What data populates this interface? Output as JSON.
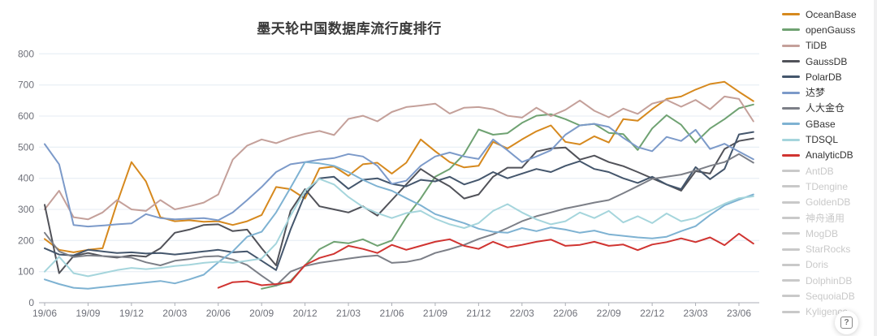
{
  "title": "墨天轮中国数据库流行度排行",
  "help_button": {
    "label": "?"
  },
  "chart_data": {
    "type": "line",
    "title": "墨天轮中国数据库流行度排行",
    "xlabel": "",
    "ylabel": "",
    "ylim": [
      0,
      800
    ],
    "y_ticks": [
      0,
      100,
      200,
      300,
      400,
      500,
      600,
      700,
      800
    ],
    "grid": true,
    "legend_position": "right",
    "x": [
      "19/06",
      "19/07",
      "19/08",
      "19/09",
      "19/10",
      "19/11",
      "19/12",
      "20/01",
      "20/02",
      "20/03",
      "20/04",
      "20/05",
      "20/06",
      "20/07",
      "20/08",
      "20/09",
      "20/10",
      "20/11",
      "20/12",
      "21/01",
      "21/02",
      "21/03",
      "21/04",
      "21/05",
      "21/06",
      "21/07",
      "21/08",
      "21/09",
      "21/10",
      "21/11",
      "21/12",
      "22/01",
      "22/02",
      "22/03",
      "22/04",
      "22/05",
      "22/06",
      "22/07",
      "22/08",
      "22/09",
      "22/10",
      "22/11",
      "22/12",
      "23/01",
      "23/02",
      "23/03",
      "23/04",
      "23/05",
      "23/06",
      "23/07"
    ],
    "x_tick_labels": [
      "19/06",
      "19/09",
      "19/12",
      "20/03",
      "20/06",
      "20/09",
      "20/12",
      "21/03",
      "21/06",
      "21/09",
      "21/12",
      "22/03",
      "22/06",
      "22/09",
      "22/12",
      "23/03",
      "23/06"
    ],
    "series": [
      {
        "name": "OceanBase",
        "color": "#D6891E",
        "enabled": true,
        "values": [
          205,
          170,
          162,
          170,
          175,
          320,
          452,
          390,
          275,
          262,
          265,
          260,
          262,
          250,
          262,
          282,
          372,
          365,
          335,
          432,
          438,
          408,
          445,
          450,
          415,
          450,
          525,
          487,
          452,
          435,
          440,
          517,
          496,
          525,
          551,
          570,
          517,
          509,
          535,
          515,
          590,
          585,
          622,
          655,
          663,
          685,
          703,
          710,
          678,
          648
        ]
      },
      {
        "name": "openGauss",
        "color": "#6FA272",
        "enabled": true,
        "values": [
          null,
          null,
          null,
          null,
          null,
          null,
          null,
          null,
          null,
          null,
          null,
          null,
          null,
          null,
          null,
          45,
          55,
          70,
          120,
          172,
          196,
          191,
          204,
          183,
          200,
          275,
          335,
          405,
          430,
          478,
          557,
          540,
          545,
          578,
          601,
          606,
          590,
          570,
          575,
          546,
          542,
          491,
          560,
          603,
          572,
          515,
          560,
          590,
          625,
          637
        ]
      },
      {
        "name": "TiDB",
        "color": "#C4A09A",
        "enabled": true,
        "values": [
          300,
          360,
          275,
          268,
          290,
          330,
          300,
          295,
          330,
          300,
          310,
          322,
          348,
          460,
          505,
          525,
          513,
          530,
          543,
          552,
          539,
          591,
          601,
          583,
          613,
          629,
          634,
          640,
          608,
          627,
          629,
          622,
          601,
          595,
          627,
          600,
          620,
          650,
          617,
          596,
          624,
          607,
          640,
          652,
          630,
          652,
          622,
          663,
          655,
          583
        ]
      },
      {
        "name": "GaussDB",
        "color": "#515259",
        "enabled": true,
        "values": [
          315,
          95,
          150,
          160,
          150,
          145,
          152,
          148,
          175,
          225,
          235,
          250,
          252,
          230,
          235,
          175,
          120,
          295,
          365,
          310,
          300,
          290,
          310,
          280,
          330,
          380,
          430,
          400,
          374,
          335,
          348,
          405,
          434,
          434,
          486,
          496,
          499,
          460,
          473,
          452,
          439,
          420,
          400,
          380,
          360,
          423,
          415,
          494,
          520,
          528
        ]
      },
      {
        "name": "PolarDB",
        "color": "#44566C",
        "enabled": true,
        "values": [
          175,
          155,
          152,
          170,
          165,
          160,
          162,
          158,
          160,
          155,
          160,
          165,
          170,
          162,
          165,
          135,
          105,
          235,
          348,
          400,
          405,
          366,
          395,
          400,
          382,
          374,
          395,
          390,
          405,
          380,
          395,
          420,
          400,
          415,
          430,
          420,
          440,
          455,
          430,
          420,
          400,
          385,
          405,
          380,
          365,
          436,
          397,
          430,
          541,
          549
        ]
      },
      {
        "name": "达梦",
        "color": "#7C9AC9",
        "enabled": true,
        "values": [
          510,
          445,
          250,
          245,
          248,
          252,
          255,
          285,
          272,
          268,
          270,
          272,
          265,
          290,
          330,
          372,
          420,
          445,
          452,
          460,
          465,
          478,
          470,
          440,
          382,
          392,
          440,
          470,
          483,
          470,
          462,
          525,
          490,
          452,
          470,
          490,
          540,
          570,
          575,
          565,
          530,
          500,
          487,
          533,
          520,
          556,
          494,
          511,
          486,
          461
        ]
      },
      {
        "name": "人大金仓",
        "color": "#7C7F87",
        "enabled": true,
        "values": [
          225,
          165,
          147,
          152,
          150,
          148,
          145,
          130,
          120,
          135,
          140,
          148,
          150,
          139,
          121,
          87,
          55,
          100,
          118,
          128,
          135,
          142,
          148,
          152,
          128,
          131,
          140,
          160,
          172,
          186,
          205,
          220,
          240,
          262,
          278,
          290,
          303,
          312,
          322,
          330,
          352,
          375,
          398,
          405,
          412,
          425,
          440,
          452,
          478,
          450
        ]
      },
      {
        "name": "GBase",
        "color": "#7EB2D2",
        "enabled": true,
        "values": [
          75,
          60,
          48,
          45,
          50,
          55,
          60,
          65,
          70,
          62,
          75,
          90,
          130,
          165,
          212,
          228,
          290,
          370,
          452,
          448,
          440,
          420,
          395,
          374,
          360,
          336,
          313,
          285,
          270,
          256,
          238,
          228,
          225,
          240,
          230,
          242,
          235,
          225,
          232,
          220,
          215,
          210,
          207,
          212,
          230,
          246,
          282,
          313,
          331,
          348
        ]
      },
      {
        "name": "TDSQL",
        "color": "#A5D5DC",
        "enabled": true,
        "values": [
          100,
          148,
          95,
          85,
          95,
          105,
          112,
          108,
          112,
          118,
          122,
          128,
          132,
          128,
          135,
          142,
          190,
          280,
          360,
          398,
          380,
          340,
          308,
          288,
          272,
          288,
          295,
          270,
          252,
          240,
          256,
          295,
          317,
          290,
          268,
          252,
          262,
          290,
          272,
          295,
          258,
          278,
          256,
          287,
          262,
          272,
          295,
          318,
          336,
          342
        ]
      },
      {
        "name": "AnalyticDB",
        "color": "#D03431",
        "enabled": true,
        "values": [
          null,
          null,
          null,
          null,
          null,
          null,
          null,
          null,
          null,
          null,
          null,
          null,
          48,
          66,
          69,
          56,
          60,
          66,
          121,
          144,
          157,
          183,
          173,
          160,
          186,
          170,
          183,
          196,
          204,
          183,
          173,
          196,
          178,
          186,
          196,
          203,
          183,
          186,
          196,
          183,
          187,
          169,
          187,
          195,
          207,
          195,
          210,
          185,
          222,
          190
        ]
      },
      {
        "name": "AntDB",
        "color": "#cccccc",
        "enabled": false,
        "values": []
      },
      {
        "name": "TDengine",
        "color": "#cccccc",
        "enabled": false,
        "values": []
      },
      {
        "name": "GoldenDB",
        "color": "#cccccc",
        "enabled": false,
        "values": []
      },
      {
        "name": "神舟通用",
        "color": "#cccccc",
        "enabled": false,
        "values": []
      },
      {
        "name": "MogDB",
        "color": "#cccccc",
        "enabled": false,
        "values": []
      },
      {
        "name": "StarRocks",
        "color": "#cccccc",
        "enabled": false,
        "values": []
      },
      {
        "name": "Doris",
        "color": "#cccccc",
        "enabled": false,
        "values": []
      },
      {
        "name": "DolphinDB",
        "color": "#cccccc",
        "enabled": false,
        "values": []
      },
      {
        "name": "SequoiaDB",
        "color": "#cccccc",
        "enabled": false,
        "values": []
      },
      {
        "name": "Kyligence",
        "color": "#cccccc",
        "enabled": false,
        "values": []
      }
    ],
    "style": {
      "grid_color": "#E4EBF3",
      "axis_line_color": "#ABAEB5",
      "tick_label_color": "#6E7079",
      "disabled_legend_color": "#c9c9c9"
    }
  }
}
